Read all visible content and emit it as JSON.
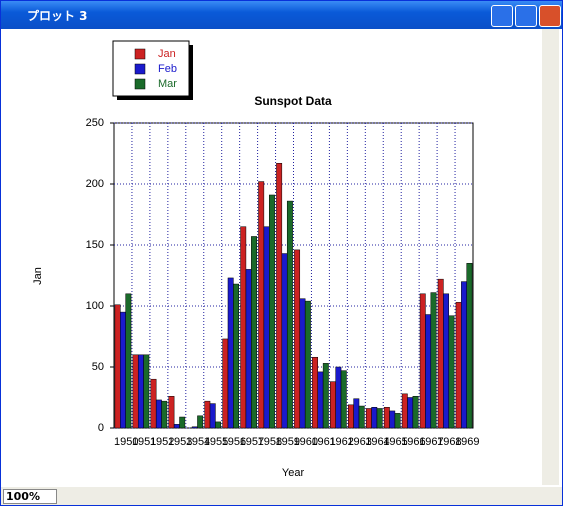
{
  "window": {
    "title": "プロット 3",
    "zoom": "100%"
  },
  "chart_data": {
    "type": "bar",
    "title": "Sunspot Data",
    "x_label": "Year",
    "y_label": "Jan",
    "categories": [
      "1950",
      "1951",
      "1952",
      "1953",
      "1954",
      "1955",
      "1956",
      "1957",
      "1958",
      "1959",
      "1960",
      "1961",
      "1962",
      "1963",
      "1964",
      "1965",
      "1966",
      "1967",
      "1968",
      "1969"
    ],
    "series": [
      {
        "name": "Jan",
        "color": "#cc2222",
        "values": [
          101,
          60,
          40,
          26,
          0,
          22,
          73,
          165,
          202,
          217,
          146,
          58,
          38,
          19,
          16,
          17,
          28,
          110,
          122,
          103
        ]
      },
      {
        "name": "Feb",
        "color": "#1a1acc",
        "values": [
          95,
          60,
          23,
          3,
          1,
          20,
          123,
          130,
          165,
          143,
          106,
          46,
          50,
          24,
          17,
          14,
          25,
          93,
          110,
          120
        ]
      },
      {
        "name": "Mar",
        "color": "#1a6a2a",
        "values": [
          110,
          60,
          22,
          9,
          10,
          5,
          118,
          157,
          191,
          186,
          104,
          53,
          47,
          18,
          16,
          12,
          26,
          111,
          92,
          135
        ]
      }
    ],
    "ylim": [
      0,
      250
    ],
    "yticks": [
      0,
      50,
      100,
      150,
      200,
      250
    ],
    "grid": true,
    "legend": "top-left"
  }
}
